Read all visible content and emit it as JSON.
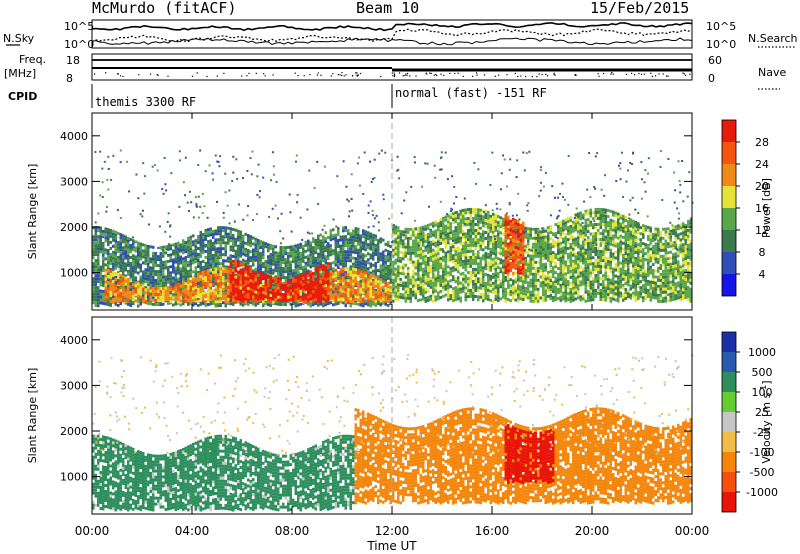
{
  "header": {
    "station": "McMurdo (fitACF)",
    "beam": "Beam 10",
    "date": "15/Feb/2015"
  },
  "left_labels": {
    "nsky": "N.Sky",
    "freq": "Freq.",
    "freq_unit": "[MHz]",
    "cpid": "CPID",
    "nsky_ticks": [
      "10^5",
      "10^0"
    ],
    "freq_ticks": [
      "18",
      "8"
    ]
  },
  "right_labels": {
    "nsearch": "N.Search",
    "nave": "Nave",
    "nsearch_ticks": [
      "10^5",
      "10^0"
    ],
    "nave_ticks": [
      "60",
      "0"
    ]
  },
  "cpid_segments": [
    {
      "label": "themis 3300 RF",
      "start_hour": 0
    },
    {
      "label": "normal (fast) -151 RF",
      "start_hour": 12
    }
  ],
  "colors": {
    "power_scale": [
      "#1515e6",
      "#2f4fb5",
      "#3a7a4f",
      "#5aa64a",
      "#e7e23a",
      "#f08a16",
      "#f4560f",
      "#e61b0b"
    ],
    "velocity_scale": [
      "#e81409",
      "#f3500b",
      "#f3860b",
      "#f1bd44",
      "#c6c6c6",
      "#65cc34",
      "#2d8f5d",
      "#2a5aad",
      "#1c2fa6"
    ]
  },
  "chart_data": [
    {
      "type": "heatmap",
      "name": "Power",
      "xlabel": "",
      "ylabel": "Slant Range [km]",
      "xlim": [
        0,
        24
      ],
      "ylim": [
        180,
        4500
      ],
      "yticks": [
        1000,
        2000,
        3000,
        4000
      ],
      "colorbar": {
        "label": "Power [dB]",
        "ticks": [
          4,
          8,
          12,
          16,
          20,
          24,
          28
        ],
        "range": [
          0,
          32
        ]
      },
      "regions": [
        {
          "t_start": 0.0,
          "t_end": 12.0,
          "range_start": 300,
          "range_end": 1800,
          "value": 10
        },
        {
          "t_start": 0.5,
          "t_end": 12.0,
          "range_start": 380,
          "range_end": 900,
          "value": 22
        },
        {
          "t_start": 5.5,
          "t_end": 9.5,
          "range_start": 400,
          "range_end": 1100,
          "value": 30
        },
        {
          "t_start": 12.0,
          "t_end": 24.0,
          "range_start": 400,
          "range_end": 2200,
          "value": 14
        },
        {
          "t_start": 16.5,
          "t_end": 17.3,
          "range_start": 1000,
          "range_end": 2300,
          "value": 26
        }
      ]
    },
    {
      "type": "heatmap",
      "name": "Velocity",
      "xlabel": "Time UT",
      "ylabel": "Slant Range [km]",
      "xlim": [
        0,
        24
      ],
      "ylim": [
        180,
        4500
      ],
      "xticks": [
        "00:00",
        "04:00",
        "08:00",
        "12:00",
        "16:00",
        "20:00",
        "00:00"
      ],
      "yticks": [
        1000,
        2000,
        3000,
        4000
      ],
      "colorbar": {
        "label": "Velocity [m s^-1]",
        "ticks": [
          "1000",
          "500",
          "100",
          "25",
          "-25",
          "-100",
          "-500",
          "-1000"
        ]
      },
      "regions": [
        {
          "t_start": 0.0,
          "t_end": 10.5,
          "range_start": 300,
          "range_end": 1700,
          "value": 60
        },
        {
          "t_start": 10.5,
          "t_end": 24.0,
          "range_start": 450,
          "range_end": 2300,
          "value": -200
        },
        {
          "t_start": 16.5,
          "t_end": 18.5,
          "range_start": 900,
          "range_end": 2200,
          "value": -600
        }
      ]
    }
  ]
}
